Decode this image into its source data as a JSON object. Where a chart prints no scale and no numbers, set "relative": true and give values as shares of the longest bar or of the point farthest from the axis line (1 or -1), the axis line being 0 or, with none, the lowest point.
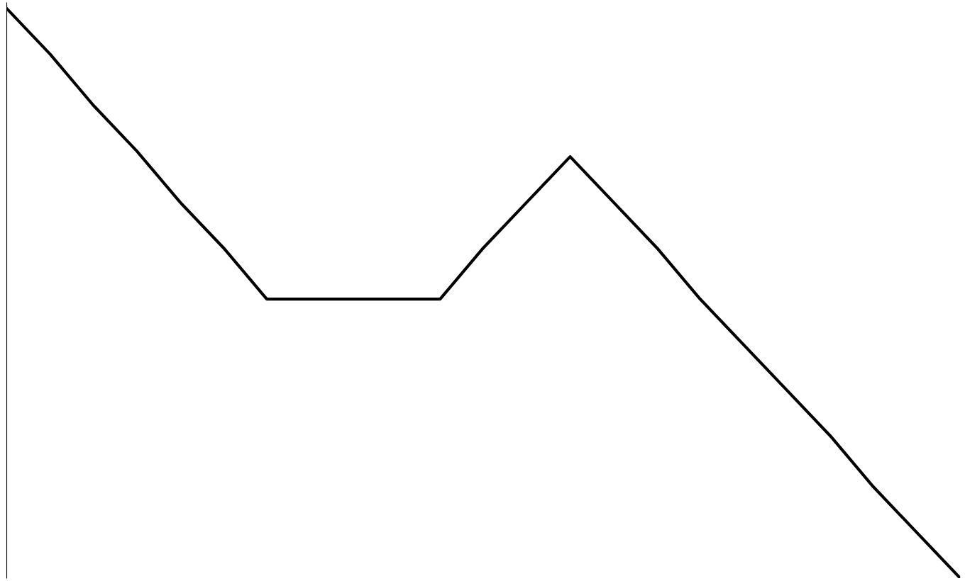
{
  "chart_data": {
    "type": "line",
    "relative": true,
    "categories": [
      null,
      null,
      null,
      null,
      null,
      null,
      null,
      null,
      null,
      null,
      null,
      null,
      null,
      null,
      null,
      null,
      null,
      null,
      null,
      null,
      null,
      null,
      null
    ],
    "series": [
      {
        "color": "#000000",
        "values": [
          1,
          0.92,
          0.83,
          0.75,
          0.66,
          0.58,
          0.49,
          0.49,
          0.49,
          0.49,
          0.49,
          0.58,
          0.66,
          0.74,
          0.66,
          0.58,
          0.49,
          0.41,
          0.33,
          0.25,
          0.16,
          0.08,
          0
        ]
      }
    ],
    "grid": false,
    "legend": false,
    "marker": "none",
    "line_style": "solid"
  }
}
